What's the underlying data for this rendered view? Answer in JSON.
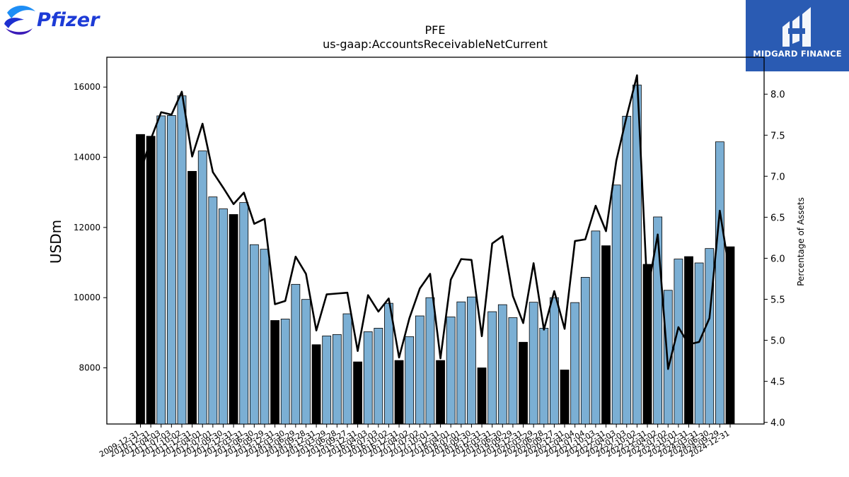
{
  "brand": {
    "company_logo_text": "Pfizer",
    "publisher_logo_text": "MIDGARD FINANCE",
    "publisher_bg": "#2a5bb3",
    "company_color": "#1d3bd6"
  },
  "chart_data": {
    "type": "bar",
    "title": "PFE",
    "subtitle": "us-gaap:AccountsReceivableNetCurrent",
    "ylabel": "USDm",
    "y2label": "Percentage of Assets",
    "ylim": [
      6400,
      16850
    ],
    "y2lim": [
      3.98,
      8.45
    ],
    "yticks": [
      8000,
      10000,
      12000,
      14000,
      16000
    ],
    "y2ticks": [
      4.0,
      4.5,
      5.0,
      5.5,
      6.0,
      6.5,
      7.0,
      7.5,
      8.0
    ],
    "grid": false,
    "legend": "none",
    "colors": {
      "quarter_bar": "#7bafd4",
      "annual_bar": "#000000",
      "line": "#000000"
    },
    "categories": [
      "2009-12-31",
      "2010-12-31",
      "2011-04-03",
      "2011-07-03",
      "2011-10-02",
      "2011-12-31",
      "2012-04-01",
      "2012-07-01",
      "2012-09-30",
      "2012-12-31",
      "2013-03-31",
      "2013-06-30",
      "2013-09-29",
      "2013-12-31",
      "2014-03-30",
      "2014-06-29",
      "2014-09-28",
      "2014-12-31",
      "2015-03-29",
      "2015-06-28",
      "2015-09-27",
      "2015-12-31",
      "2016-04-03",
      "2016-07-03",
      "2016-10-02",
      "2016-12-31",
      "2017-04-02",
      "2017-07-02",
      "2017-10-01",
      "2017-12-31",
      "2018-04-01",
      "2018-07-01",
      "2018-09-30",
      "2018-12-31",
      "2019-03-31",
      "2019-06-30",
      "2019-09-29",
      "2019-12-31",
      "2020-03-29",
      "2020-06-28",
      "2020-09-27",
      "2020-12-31",
      "2021-04-04",
      "2021-07-04",
      "2021-10-03",
      "2021-12-31",
      "2022-04-03",
      "2022-07-03",
      "2022-10-02",
      "2022-12-31",
      "2023-04-02",
      "2023-07-02",
      "2023-10-01",
      "2023-12-31",
      "2024-03-31",
      "2024-06-30",
      "2024-09-29",
      "2024-12-31"
    ],
    "values": [
      14650,
      14600,
      15180,
      15190,
      15750,
      13600,
      14180,
      12870,
      12530,
      12370,
      12710,
      11510,
      11380,
      9350,
      9390,
      10380,
      9950,
      8660,
      8910,
      8950,
      9540,
      8170,
      9030,
      9130,
      9840,
      8210,
      8890,
      9480,
      10000,
      8210,
      9450,
      9880,
      10020,
      8000,
      9600,
      9800,
      9430,
      8730,
      9870,
      9130,
      10000,
      7940,
      9860,
      10580,
      11900,
      11480,
      13210,
      15170,
      16060,
      10950,
      12300,
      10210,
      11100,
      11170,
      10990,
      11400,
      14440,
      11450
    ],
    "annual": [
      true,
      true,
      false,
      false,
      false,
      true,
      false,
      false,
      false,
      true,
      false,
      false,
      false,
      true,
      false,
      false,
      false,
      true,
      false,
      false,
      false,
      true,
      false,
      false,
      false,
      true,
      false,
      false,
      false,
      true,
      false,
      false,
      false,
      true,
      false,
      false,
      false,
      true,
      false,
      false,
      false,
      true,
      false,
      false,
      false,
      true,
      false,
      false,
      false,
      true,
      false,
      false,
      false,
      true,
      false,
      false,
      false,
      true
    ],
    "pct_of_assets": [
      7.05,
      7.45,
      7.78,
      7.75,
      8.03,
      7.24,
      7.64,
      7.05,
      6.86,
      6.66,
      6.8,
      6.42,
      6.48,
      5.44,
      5.48,
      6.02,
      5.81,
      5.12,
      5.56,
      5.57,
      5.58,
      4.87,
      5.55,
      5.35,
      5.51,
      4.79,
      5.27,
      5.63,
      5.81,
      4.78,
      5.74,
      5.99,
      5.98,
      5.05,
      6.18,
      6.27,
      5.54,
      5.21,
      5.94,
      5.13,
      5.6,
      5.14,
      6.21,
      6.23,
      6.64,
      6.33,
      7.19,
      7.73,
      8.23,
      5.58,
      6.29,
      4.65,
      5.16,
      4.95,
      4.98,
      5.27,
      6.58,
      5.78
    ]
  }
}
